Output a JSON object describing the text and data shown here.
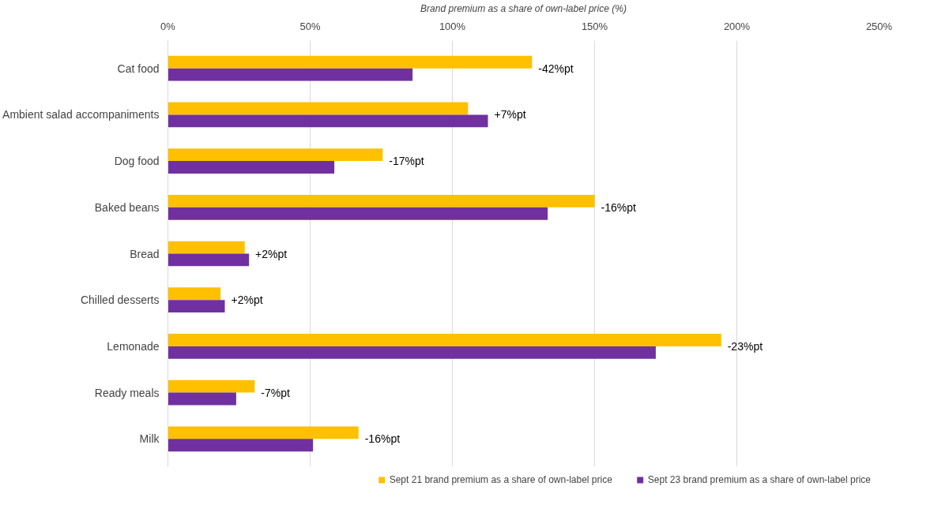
{
  "chart_data": {
    "type": "bar",
    "orientation": "horizontal",
    "xlabel": "Brand premium as a share of own-label price (%)",
    "categories": [
      "Cat food",
      "Ambient salad accompaniments",
      "Dog food",
      "Baked beans",
      "Bread",
      "Chilled desserts",
      "Lemonade",
      "Ready meals",
      "Milk"
    ],
    "series": [
      {
        "name": "Sept 21 brand premium as a share of own-label price",
        "color": "#ffc000",
        "values": [
          128,
          105.5,
          75.5,
          150,
          27,
          18.5,
          194.5,
          30.5,
          67
        ]
      },
      {
        "name": "Sept 23 brand premium as a share of own-label price",
        "color": "#7030a0",
        "values": [
          86,
          112.5,
          58.5,
          133.5,
          28.5,
          20,
          171.5,
          24,
          51
        ]
      }
    ],
    "xlim": [
      0,
      250
    ],
    "xticks": [
      {
        "value": 0,
        "label": "0%"
      },
      {
        "value": 50,
        "label": "50%"
      },
      {
        "value": 100,
        "label": "100%"
      },
      {
        "value": 150,
        "label": "150%"
      },
      {
        "value": 200,
        "label": "200%"
      },
      {
        "value": 250,
        "label": "250%"
      }
    ],
    "annotations": [
      "-42%pt",
      "+7%pt",
      "-17%pt",
      "-16%pt",
      "+2%pt",
      "+2%pt",
      "-23%pt",
      "-7%pt",
      "-16%pt"
    ],
    "grid": "x",
    "legend": "bottom"
  }
}
